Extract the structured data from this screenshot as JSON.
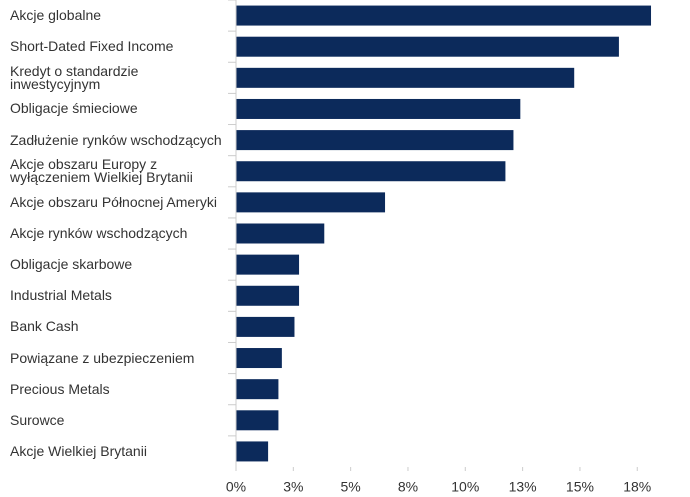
{
  "chart_data": {
    "type": "bar",
    "orientation": "horizontal",
    "categories": [
      "Akcje globalne",
      "Short-Dated Fixed Income",
      "Kredyt o standardzie inwestycyjnym",
      "Obligacje śmieciowe",
      "Zadłużenie rynków wschodzących",
      "Akcje obszaru Europy z wyłączeniem Wielkiej Brytanii",
      "Akcje obszaru Północnej Ameryki",
      "Akcje rynków wschodzących",
      "Obligacje skarbowe",
      "Industrial Metals",
      "Bank Cash",
      "Powiązane z ubezpieczeniem",
      "Precious Metals",
      "Surowce",
      "Akcje Wielkiej Brytanii"
    ],
    "values": [
      18.1,
      16.7,
      14.75,
      12.4,
      12.1,
      11.75,
      6.5,
      3.85,
      2.75,
      2.75,
      2.55,
      2.0,
      1.85,
      1.85,
      1.4
    ],
    "color": "#0c2a5b",
    "xlim": [
      0,
      19.8
    ],
    "xticks": [
      {
        "value": 0,
        "label": "0%"
      },
      {
        "value": 2.5,
        "label": "3%"
      },
      {
        "value": 5,
        "label": "5%"
      },
      {
        "value": 7.5,
        "label": "8%"
      },
      {
        "value": 10,
        "label": "10%"
      },
      {
        "value": 12.5,
        "label": "13%"
      },
      {
        "value": 15,
        "label": "15%"
      },
      {
        "value": 17.5,
        "label": "18%"
      }
    ],
    "grid": false
  }
}
